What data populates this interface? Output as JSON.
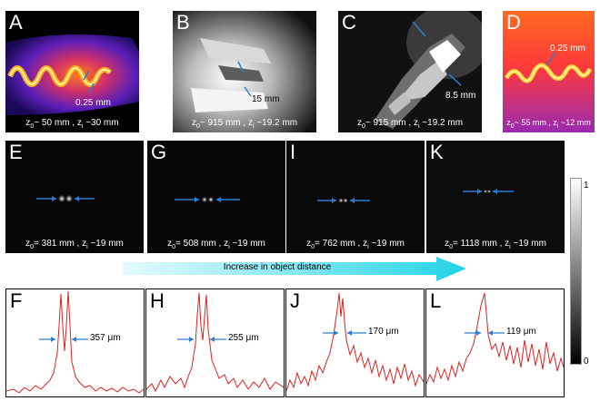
{
  "figure": {
    "colors": {
      "arrow_blue": "#2a7fd4",
      "trace_red": "#e02020",
      "band_cyan": "#22d3e6"
    },
    "panels_top": [
      {
        "label": "A",
        "caption_z0": "~ 50 mm",
        "caption_zi": "~30 mm",
        "annotation": "0.25 mm"
      },
      {
        "label": "B",
        "caption_z0": "~ 915 mm",
        "caption_zi": "~19.2 mm",
        "annotation": "15 mm"
      },
      {
        "label": "C",
        "caption_z0": "~ 915 mm",
        "caption_zi": "~19.2 mm",
        "annotation": "8.5 mm"
      },
      {
        "label": "D",
        "caption_z0": "~ 55 mm",
        "caption_zi": "~12 mm",
        "annotation": "0.25 mm"
      }
    ],
    "panels_mid": [
      {
        "label": "E",
        "caption_z0": "= 381 mm",
        "caption_zi": "~19 mm"
      },
      {
        "label": "G",
        "caption_z0": "= 508 mm",
        "caption_zi": "~19 mm"
      },
      {
        "label": "I",
        "caption_z0": "= 762 mm",
        "caption_zi": "~19 mm"
      },
      {
        "label": "K",
        "caption_z0": "= 1118 mm",
        "caption_zi": "~19 mm"
      }
    ],
    "panels_plot": [
      {
        "label": "F",
        "width_label": "357 μm"
      },
      {
        "label": "H",
        "width_label": "255 μm"
      },
      {
        "label": "J",
        "width_label": "170 μm"
      },
      {
        "label": "L",
        "width_label": "119 μm"
      }
    ],
    "z0": "z",
    "z0_sub": "0",
    "zi_sub": "i",
    "sep": " , z",
    "band_text": "Increase in object distance",
    "colorbar": {
      "max": "1",
      "min": "0"
    }
  }
}
